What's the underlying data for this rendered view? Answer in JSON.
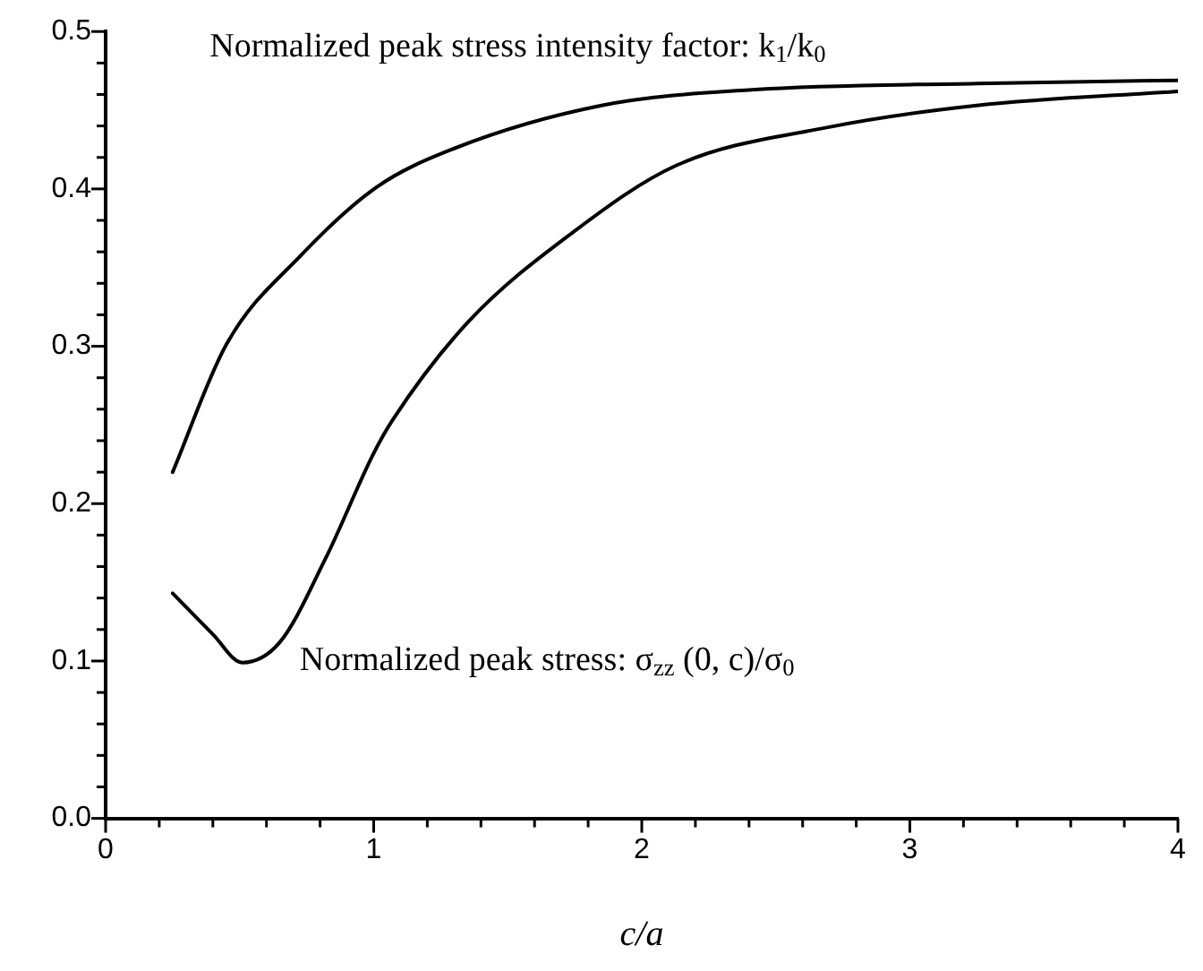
{
  "chart_data": {
    "type": "line",
    "xlabel": "c/a",
    "marker": "none",
    "grid": false,
    "legend": false,
    "xlim": [
      0,
      4
    ],
    "ylim": [
      0,
      0.5
    ],
    "xticks": [
      0,
      {
        "value": 0.2,
        "label": null
      },
      {
        "value": 0.4,
        "label": null
      },
      {
        "value": 0.6,
        "label": null
      },
      {
        "value": 0.8,
        "label": null
      },
      1,
      {
        "value": 1.2,
        "label": null
      },
      {
        "value": 1.4,
        "label": null
      },
      {
        "value": 1.6,
        "label": null
      },
      {
        "value": 1.8,
        "label": null
      },
      2,
      {
        "value": 2.2,
        "label": null
      },
      {
        "value": 2.4,
        "label": null
      },
      {
        "value": 2.6,
        "label": null
      },
      {
        "value": 2.8,
        "label": null
      },
      3,
      {
        "value": 3.2,
        "label": null
      },
      {
        "value": 3.4,
        "label": null
      },
      {
        "value": 3.6,
        "label": null
      },
      {
        "value": 3.8,
        "label": null
      },
      4
    ],
    "yticks": [
      {
        "value": 0,
        "label": "0.0"
      },
      {
        "value": 0.02,
        "label": null
      },
      {
        "value": 0.04,
        "label": null
      },
      {
        "value": 0.06,
        "label": null
      },
      {
        "value": 0.08,
        "label": null
      },
      0.1,
      {
        "value": 0.12,
        "label": null
      },
      {
        "value": 0.14,
        "label": null
      },
      {
        "value": 0.16,
        "label": null
      },
      {
        "value": 0.18,
        "label": null
      },
      0.2,
      {
        "value": 0.22,
        "label": null
      },
      {
        "value": 0.24,
        "label": null
      },
      {
        "value": 0.26,
        "label": null
      },
      {
        "value": 0.28,
        "label": null
      },
      0.3,
      {
        "value": 0.32,
        "label": null
      },
      {
        "value": 0.34,
        "label": null
      },
      {
        "value": 0.36,
        "label": null
      },
      {
        "value": 0.38,
        "label": null
      },
      0.4,
      {
        "value": 0.42,
        "label": null
      },
      {
        "value": 0.44,
        "label": null
      },
      {
        "value": 0.46,
        "label": null
      },
      {
        "value": 0.48,
        "label": null
      },
      0.5
    ],
    "series": [
      {
        "color": "#000000",
        "x": [
          0.25,
          0.45,
          0.73,
          1.01,
          1.29,
          1.85,
          2.41,
          3.25,
          4.0
        ],
        "values": [
          0.22,
          0.301,
          0.358,
          0.401,
          0.425,
          0.453,
          0.463,
          0.467,
          0.469
        ]
      },
      {
        "color": "#000000",
        "x": [
          0.25,
          0.4,
          0.51,
          0.65,
          0.82,
          1.0,
          1.07,
          1.35,
          1.74,
          2.13,
          2.69,
          3.25,
          4.0
        ],
        "values": [
          0.143,
          0.117,
          0.099,
          0.112,
          0.165,
          0.232,
          0.253,
          0.315,
          0.372,
          0.415,
          0.439,
          0.453,
          0.462
        ]
      }
    ],
    "annotations": [
      "Normalized peak stress intensity factor: k$_{1}$/k$_{0}$",
      "Normalized peak stress: σ$_{zz}$ (0, c)/σ$_{0}$"
    ]
  }
}
